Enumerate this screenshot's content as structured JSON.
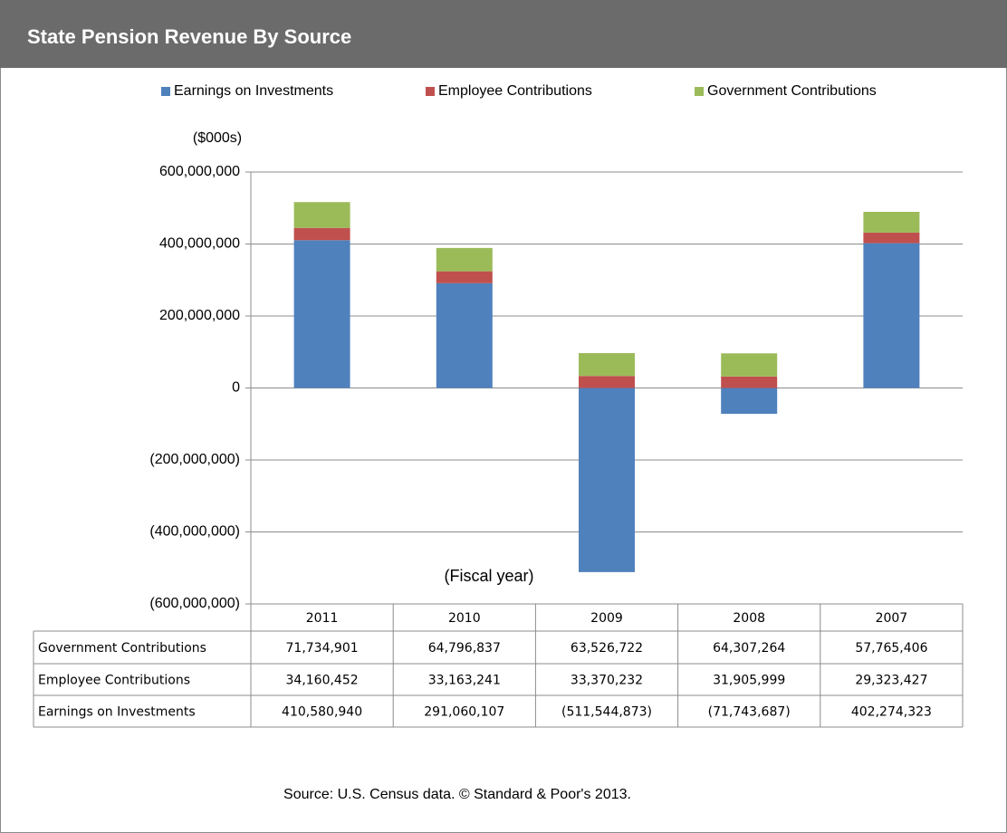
{
  "chart_data": {
    "type": "bar",
    "stacked": true,
    "title": "State Pension Revenue By Source",
    "y_axis_label": "($000s)",
    "x_axis_label": "(Fiscal year)",
    "source": "Source: U.S. Census data.  © Standard & Poor's 2013.",
    "legend": "top",
    "grid": true,
    "categories": [
      "2011",
      "2010",
      "2009",
      "2008",
      "2007"
    ],
    "series": [
      {
        "name": "Earnings on Investments",
        "color": "#4f81bd",
        "values": [
          410580940,
          291060107,
          -511544873,
          -71743687,
          402274323
        ],
        "value_labels": [
          "410,580,940",
          "291,060,107",
          "(511,544,873)",
          "(71,743,687)",
          "402,274,323"
        ]
      },
      {
        "name": "Employee Contributions",
        "color": "#c0504d",
        "values": [
          34160452,
          33163241,
          33370232,
          31905999,
          29323427
        ],
        "value_labels": [
          "34,160,452",
          "33,163,241",
          "33,370,232",
          "31,905,999",
          "29,323,427"
        ]
      },
      {
        "name": "Government Contributions",
        "color": "#9bbb59",
        "values": [
          71734901,
          64796837,
          63526722,
          64307264,
          57765406
        ],
        "value_labels": [
          "71,734,901",
          "64,796,837",
          "63,526,722",
          "64,307,264",
          "57,765,406"
        ]
      }
    ],
    "ylim": [
      -600000000,
      600000000
    ],
    "yticks": [
      {
        "value": -600000000,
        "label": "(600,000,000)"
      },
      {
        "value": -400000000,
        "label": "(400,000,000)"
      },
      {
        "value": -200000000,
        "label": "(200,000,000)"
      },
      0,
      {
        "value": 200000000,
        "label": "200,000,000"
      },
      {
        "value": 400000000,
        "label": "400,000,000"
      },
      {
        "value": 600000000,
        "label": "600,000,000"
      }
    ]
  }
}
